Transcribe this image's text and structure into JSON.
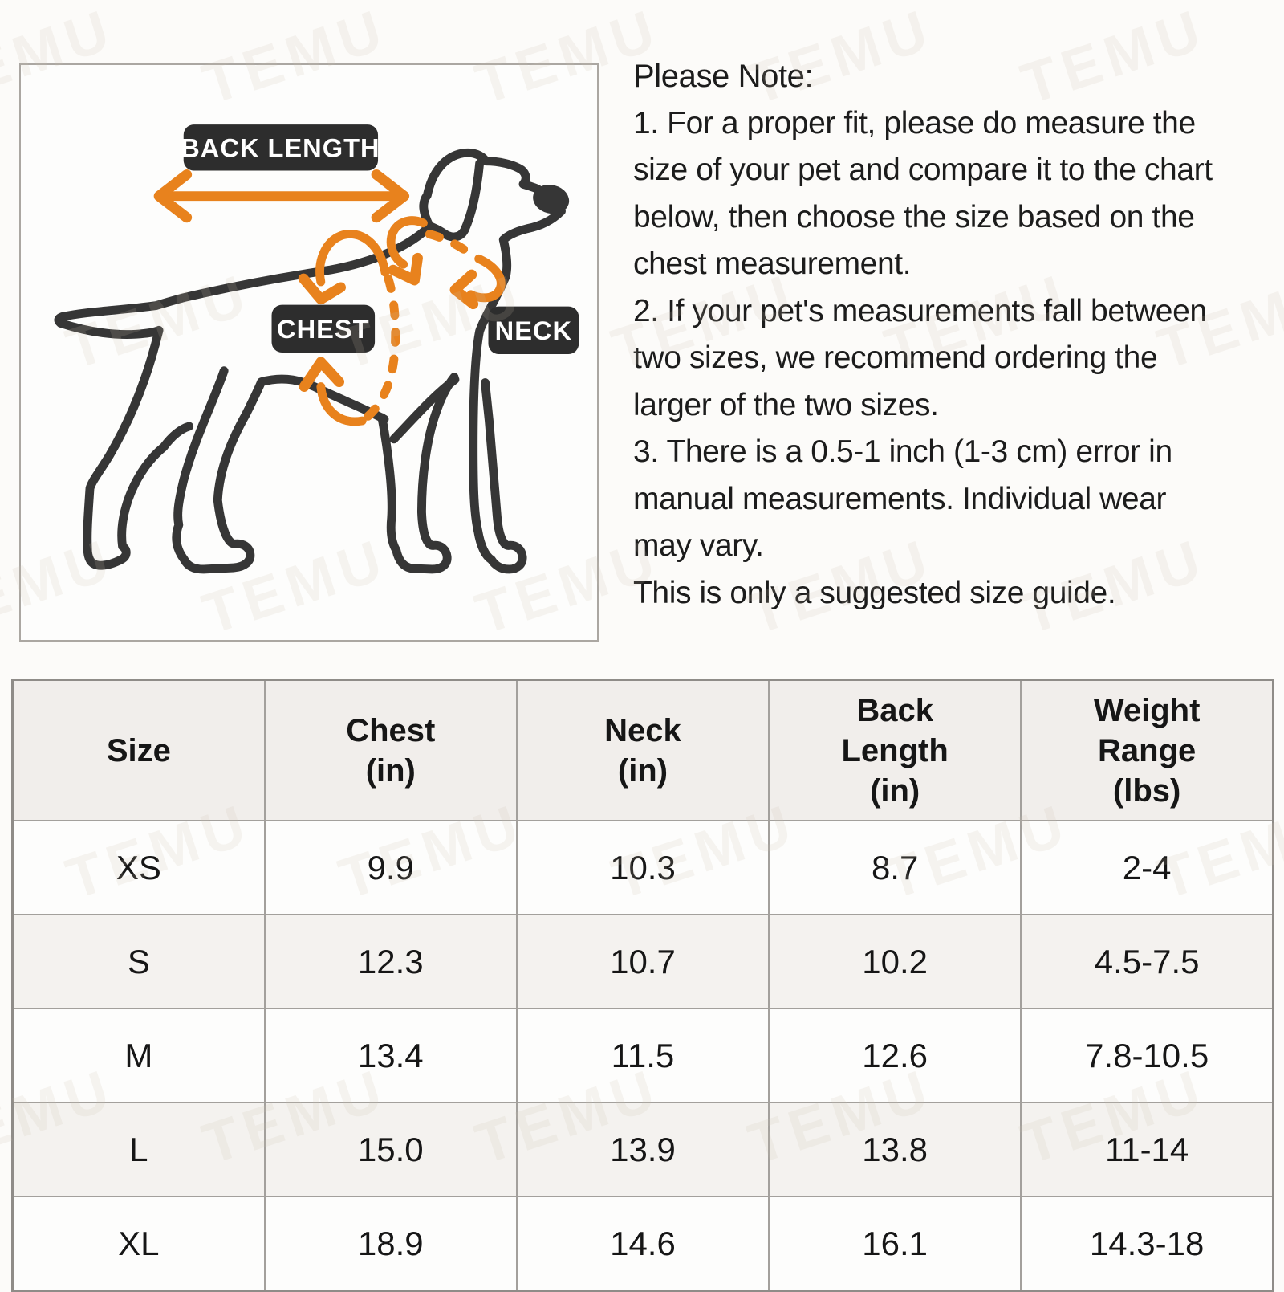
{
  "watermark": "TEMU",
  "diagram": {
    "labels": {
      "back_length": "BACK LENGTH",
      "chest": "CHEST",
      "neck": "NECK"
    }
  },
  "note": {
    "title": "Please Note:",
    "lines": [
      "1. For a proper fit, please do measure the",
      "size of your pet and compare it to the chart",
      "below, then choose the size based on the",
      "chest measurement.",
      "2. If your pet's measurements fall between",
      "two sizes, we recommend ordering the",
      "larger of the two sizes.",
      "3. There is a 0.5-1 inch (1-3 cm) error in",
      "manual measurements. Individual wear",
      "may vary.",
      "This is only a suggested size guide."
    ]
  },
  "table": {
    "columns": [
      {
        "lines": [
          "Size"
        ]
      },
      {
        "lines": [
          "Chest",
          "(in)"
        ]
      },
      {
        "lines": [
          "Neck",
          "(in)"
        ]
      },
      {
        "lines": [
          "Back",
          "Length",
          "(in)"
        ]
      },
      {
        "lines": [
          "Weight",
          "Range",
          "(lbs)"
        ]
      }
    ],
    "rows": [
      [
        "XS",
        "9.9",
        "10.3",
        "8.7",
        "2-4"
      ],
      [
        "S",
        "12.3",
        "10.7",
        "10.2",
        "4.5-7.5"
      ],
      [
        "M",
        "13.4",
        "11.5",
        "12.6",
        "7.8-10.5"
      ],
      [
        "L",
        "15.0",
        "13.9",
        "13.8",
        "11-14"
      ],
      [
        "XL",
        "18.9",
        "14.6",
        "16.1",
        "14.3-18"
      ]
    ]
  },
  "colors": {
    "accent_orange": "#E8821D",
    "dog_line": "#363636",
    "label_bg": "#2D2D2D",
    "label_text": "#FFFFFF"
  }
}
